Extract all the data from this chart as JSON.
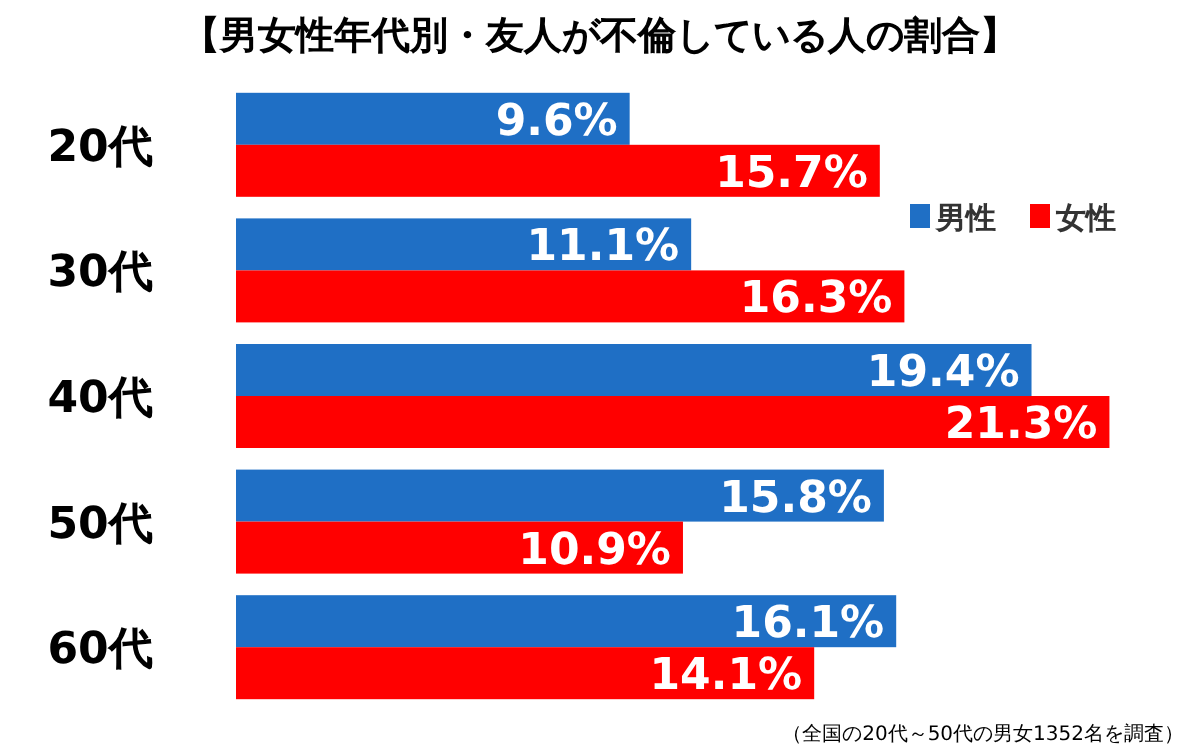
{
  "chart_data": {
    "type": "bar",
    "orientation": "horizontal",
    "title": "【男女性年代別・友人が不倫している人の割合】",
    "categories": [
      "20代",
      "30代",
      "40代",
      "50代",
      "60代"
    ],
    "series": [
      {
        "name": "男性",
        "color": "#1f6fc5",
        "values": [
          9.6,
          11.1,
          19.4,
          15.8,
          16.1
        ],
        "value_labels": [
          "9.6%",
          "11.1%",
          "19.4%",
          "15.8%",
          "16.1%"
        ]
      },
      {
        "name": "女性",
        "color": "#ff0000",
        "values": [
          15.7,
          16.3,
          21.3,
          10.9,
          14.1
        ],
        "value_labels": [
          "15.7%",
          "16.3%",
          "21.3%",
          "10.9%",
          "14.1%"
        ]
      }
    ],
    "legend": "top right",
    "annotations": [
      "（全国の20代～50代の男女1352名を調査）"
    ]
  }
}
